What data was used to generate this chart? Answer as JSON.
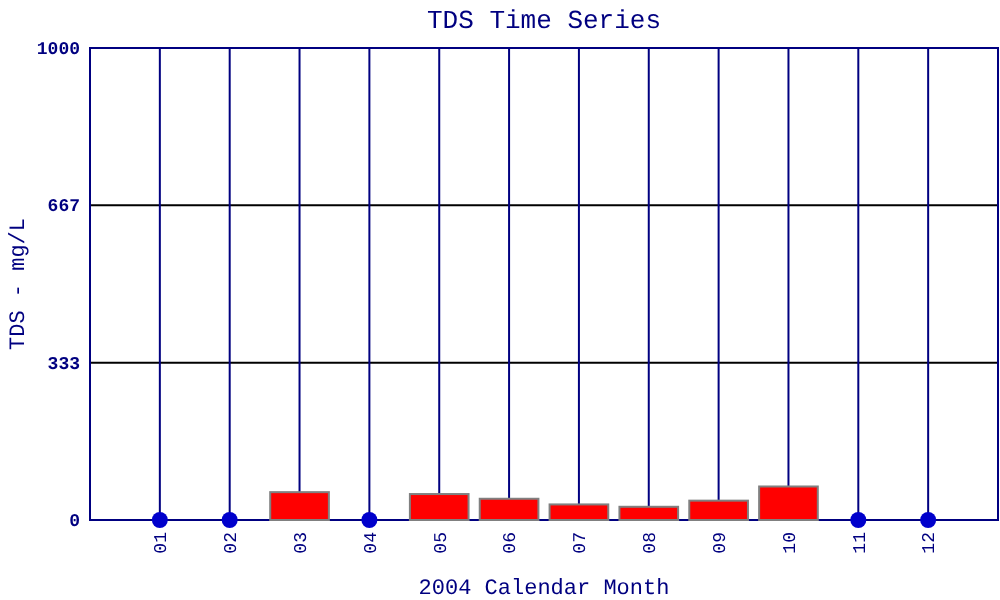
{
  "chart_data": {
    "type": "bar",
    "title": "TDS Time Series",
    "xlabel": "2004 Calendar Month",
    "ylabel": "TDS - mg/L",
    "categories": [
      "01",
      "02",
      "03",
      "04",
      "05",
      "06",
      "07",
      "08",
      "09",
      "10",
      "11",
      "12"
    ],
    "series": [
      {
        "color": "#ff0000",
        "values": [
          null,
          null,
          59,
          null,
          55,
          45,
          33,
          28,
          41,
          71,
          null,
          null
        ]
      },
      {
        "type": "scatter",
        "color": "#0000cc",
        "x": [
          "01",
          "02",
          "04",
          "11",
          "12"
        ],
        "values": [
          0,
          0,
          0,
          0,
          0
        ]
      }
    ],
    "ylim": [
      0,
      1000
    ],
    "yticks": [
      0,
      333,
      667,
      1000
    ],
    "grid": true,
    "marker": "circle"
  }
}
